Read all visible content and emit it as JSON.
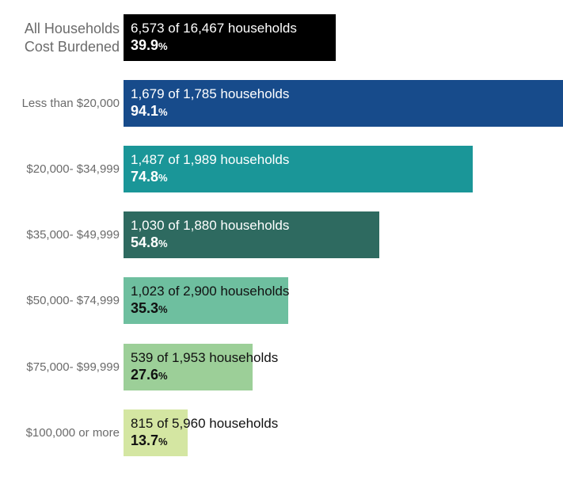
{
  "chart_data": {
    "type": "bar",
    "orientation": "horizontal",
    "title": "",
    "xlabel": "",
    "ylabel": "",
    "xlim": [
      0,
      100
    ],
    "grid": false,
    "categories": [
      "All Households Cost Burdened",
      "Less than $20,000",
      "$20,000- $34,999",
      "$35,000- $49,999",
      "$50,000- $74,999",
      "$75,000- $99,999",
      "$100,000 or more"
    ],
    "category_lines": [
      [
        "All Households",
        "Cost Burdened"
      ],
      [
        "Less than $20,000"
      ],
      [
        "$20,000- $34,999"
      ],
      [
        "$35,000- $49,999"
      ],
      [
        "$50,000- $74,999"
      ],
      [
        "$75,000- $99,999"
      ],
      [
        "$100,000 or more"
      ]
    ],
    "values": [
      39.9,
      94.1,
      74.8,
      54.8,
      35.3,
      27.6,
      13.7
    ],
    "value_labels": [
      "39.9",
      "94.1",
      "74.8",
      "54.8",
      "35.3",
      "27.6",
      "13.7"
    ],
    "percent_sign": "%",
    "counts": [
      "6,573 of 16,467 households",
      "1,679 of 1,785 households",
      "1,487 of 1,989 households",
      "1,030 of 1,880 households",
      "1,023 of 2,900 households",
      "539 of 1,953 households",
      "815 of 5,960 households"
    ],
    "colors": [
      "#000000",
      "#174b8b",
      "#1a9698",
      "#2e6a60",
      "#6ebf9f",
      "#9ccf98",
      "#d4e6a2"
    ],
    "text_colors": [
      "#ffffff",
      "#ffffff",
      "#ffffff",
      "#ffffff",
      "#111111",
      "#111111",
      "#111111"
    ]
  }
}
